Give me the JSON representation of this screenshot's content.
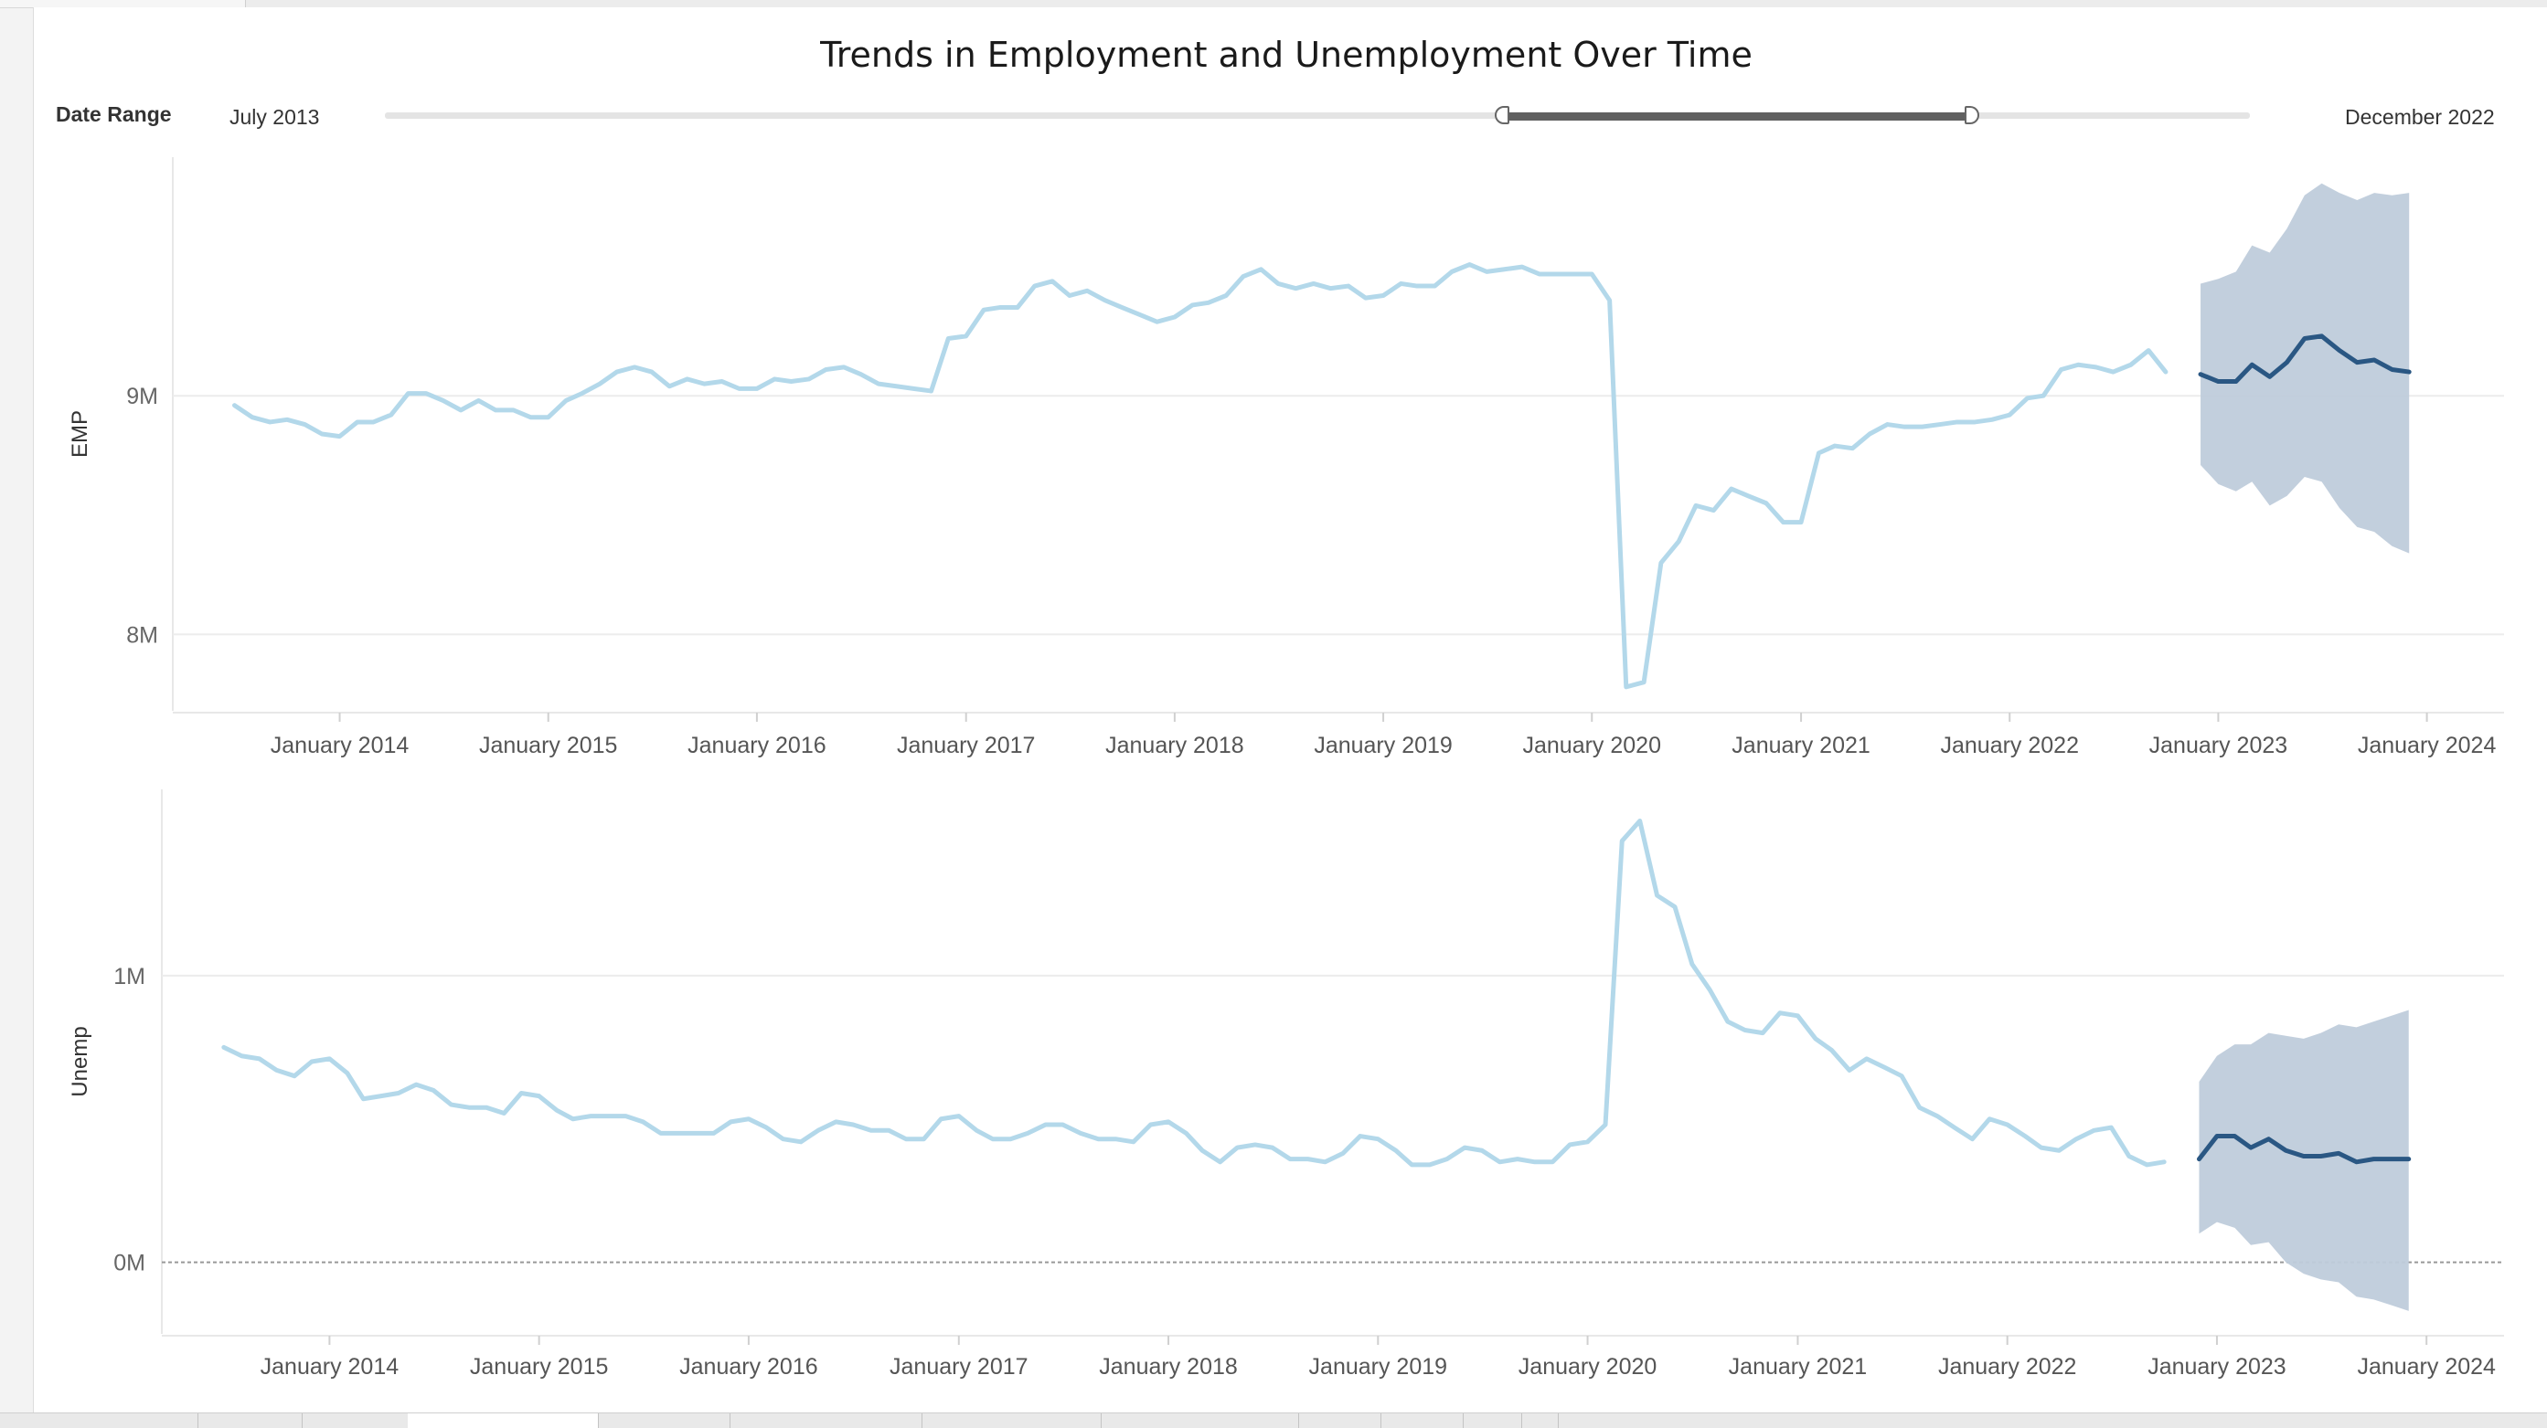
{
  "dashboard": {
    "title": "Trends in Employment and Unemployment Over Time",
    "filter": {
      "label": "Date Range",
      "start_label": "July 2013",
      "end_label": "December 2022",
      "selected_fraction_start": 0.6,
      "selected_fraction_end": 0.85
    }
  },
  "colors": {
    "actual": "#b3d8ea",
    "forecast": "#2a5783",
    "band": "#bfccdb",
    "grid": "#ececec",
    "zero_line": "#999999",
    "axis_text": "#666666"
  },
  "chart_data": [
    {
      "type": "line",
      "ylabel": "EMP",
      "y_ticks": [
        {
          "value": 8000000,
          "label": "8M"
        },
        {
          "value": 9000000,
          "label": "9M"
        }
      ],
      "ylim": [
        7680000,
        10000000
      ],
      "xlim": [
        "2013-03-15",
        "2024-05-15"
      ],
      "x_ticks": [
        {
          "date": "2014-01-01",
          "label": "January 2014"
        },
        {
          "date": "2015-01-01",
          "label": "January 2015"
        },
        {
          "date": "2016-01-01",
          "label": "January 2016"
        },
        {
          "date": "2017-01-01",
          "label": "January 2017"
        },
        {
          "date": "2018-01-01",
          "label": "January 2018"
        },
        {
          "date": "2019-01-01",
          "label": "January 2019"
        },
        {
          "date": "2020-01-01",
          "label": "January 2020"
        },
        {
          "date": "2021-01-01",
          "label": "January 2021"
        },
        {
          "date": "2022-01-01",
          "label": "January 2022"
        },
        {
          "date": "2023-01-01",
          "label": "January 2023"
        },
        {
          "date": "2024-01-01",
          "label": "January 2024"
        }
      ],
      "actual": {
        "start": "2013-07",
        "values": [
          8960000,
          8910000,
          8890000,
          8900000,
          8880000,
          8840000,
          8830000,
          8890000,
          8890000,
          8920000,
          9010000,
          9010000,
          8980000,
          8940000,
          8980000,
          8940000,
          8940000,
          8910000,
          8910000,
          8980000,
          9010000,
          9050000,
          9100000,
          9120000,
          9100000,
          9040000,
          9070000,
          9050000,
          9060000,
          9030000,
          9030000,
          9070000,
          9060000,
          9070000,
          9110000,
          9120000,
          9090000,
          9050000,
          9040000,
          9030000,
          9020000,
          9240000,
          9250000,
          9360000,
          9370000,
          9370000,
          9460000,
          9480000,
          9420000,
          9440000,
          9400000,
          9370000,
          9340000,
          9310000,
          9330000,
          9380000,
          9390000,
          9420000,
          9500000,
          9530000,
          9470000,
          9450000,
          9470000,
          9450000,
          9460000,
          9410000,
          9420000,
          9470000,
          9460000,
          9460000,
          9520000,
          9550000,
          9520000,
          9530000,
          9540000,
          9510000,
          9510000,
          9510000,
          9510000,
          9400000,
          7780000,
          7800000,
          8300000,
          8390000,
          8540000,
          8520000,
          8610000,
          8580000,
          8550000,
          8470000,
          8470000,
          8760000,
          8790000,
          8780000,
          8840000,
          8880000,
          8870000,
          8870000,
          8880000,
          8890000,
          8890000,
          8900000,
          8920000,
          8990000,
          9000000,
          9110000,
          9130000,
          9120000,
          9100000,
          9130000,
          9190000,
          9100000
        ]
      },
      "forecast": {
        "start": "2022-12",
        "values": [
          9090000,
          9060000,
          9060000,
          9130000,
          9080000,
          9140000,
          9240000,
          9250000,
          9190000,
          9140000,
          9150000,
          9110000,
          9100000
        ],
        "upper": [
          9470000,
          9490000,
          9520000,
          9630000,
          9600000,
          9700000,
          9840000,
          9890000,
          9850000,
          9820000,
          9850000,
          9840000,
          9850000
        ],
        "lower": [
          8710000,
          8630000,
          8600000,
          8640000,
          8540000,
          8580000,
          8660000,
          8640000,
          8530000,
          8450000,
          8430000,
          8370000,
          8340000
        ]
      }
    },
    {
      "type": "line",
      "ylabel": "Unemp",
      "y_ticks": [
        {
          "value": 0,
          "label": "0M"
        },
        {
          "value": 1000000,
          "label": "1M"
        }
      ],
      "ylim": [
        -250000,
        1650000
      ],
      "zero_line": true,
      "xlim": [
        "2013-03-15",
        "2024-05-15"
      ],
      "x_ticks": [
        {
          "date": "2014-01-01",
          "label": "January 2014"
        },
        {
          "date": "2015-01-01",
          "label": "January 2015"
        },
        {
          "date": "2016-01-01",
          "label": "January 2016"
        },
        {
          "date": "2017-01-01",
          "label": "January 2017"
        },
        {
          "date": "2018-01-01",
          "label": "January 2018"
        },
        {
          "date": "2019-01-01",
          "label": "January 2019"
        },
        {
          "date": "2020-01-01",
          "label": "January 2020"
        },
        {
          "date": "2021-01-01",
          "label": "January 2021"
        },
        {
          "date": "2022-01-01",
          "label": "January 2022"
        },
        {
          "date": "2023-01-01",
          "label": "January 2023"
        },
        {
          "date": "2024-01-01",
          "label": "January 2024"
        }
      ],
      "actual": {
        "start": "2013-07",
        "values": [
          750000,
          720000,
          710000,
          670000,
          650000,
          700000,
          710000,
          660000,
          570000,
          580000,
          590000,
          620000,
          600000,
          550000,
          540000,
          540000,
          520000,
          590000,
          580000,
          530000,
          500000,
          510000,
          510000,
          510000,
          490000,
          450000,
          450000,
          450000,
          450000,
          490000,
          500000,
          470000,
          430000,
          420000,
          460000,
          490000,
          480000,
          460000,
          460000,
          430000,
          430000,
          500000,
          510000,
          460000,
          430000,
          430000,
          450000,
          480000,
          480000,
          450000,
          430000,
          430000,
          420000,
          480000,
          490000,
          450000,
          390000,
          350000,
          400000,
          410000,
          400000,
          360000,
          360000,
          350000,
          380000,
          440000,
          430000,
          390000,
          340000,
          340000,
          360000,
          400000,
          390000,
          350000,
          360000,
          350000,
          350000,
          410000,
          420000,
          480000,
          1470000,
          1540000,
          1280000,
          1240000,
          1040000,
          950000,
          840000,
          810000,
          800000,
          870000,
          860000,
          780000,
          740000,
          670000,
          710000,
          680000,
          650000,
          540000,
          510000,
          470000,
          430000,
          500000,
          480000,
          440000,
          400000,
          390000,
          430000,
          460000,
          470000,
          370000,
          340000,
          350000
        ]
      },
      "forecast": {
        "start": "2022-12",
        "values": [
          360000,
          440000,
          440000,
          400000,
          430000,
          390000,
          370000,
          370000,
          380000,
          350000,
          360000,
          360000,
          360000
        ],
        "upper": [
          630000,
          720000,
          760000,
          760000,
          800000,
          790000,
          780000,
          800000,
          830000,
          820000,
          840000,
          860000,
          880000
        ],
        "lower": [
          100000,
          140000,
          120000,
          60000,
          70000,
          0,
          -40000,
          -60000,
          -70000,
          -120000,
          -130000,
          -150000,
          -170000
        ]
      }
    }
  ]
}
